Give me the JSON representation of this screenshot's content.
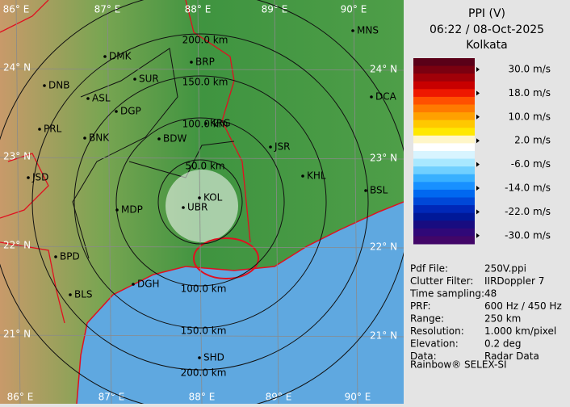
{
  "header": {
    "title": "PPI (V)",
    "time": "06:22 / 08-Oct-2025",
    "site": "Kolkata"
  },
  "legend": {
    "colors": [
      "#5a0018",
      "#7a0010",
      "#a00008",
      "#c80000",
      "#ee1800",
      "#ff5000",
      "#ff7a00",
      "#ffa000",
      "#ffc800",
      "#ffe800",
      "#fff6c8",
      "#ffffff",
      "#d8f4ff",
      "#a8e8ff",
      "#70d0ff",
      "#38b0ff",
      "#1890ff",
      "#0068f0",
      "#0048d8",
      "#0028b8",
      "#001898",
      "#180c80",
      "#300878",
      "#420668"
    ],
    "labels": [
      "30.0 m/s",
      "18.0 m/s",
      "10.0 m/s",
      "2.0 m/s",
      "-6.0 m/s",
      "-14.0 m/s",
      "-22.0 m/s",
      "-30.0 m/s"
    ]
  },
  "info": [
    [
      "Pdf File:",
      "250V.ppi"
    ],
    [
      "Clutter Filter:",
      "IIRDoppler 7"
    ],
    [
      "Time sampling:",
      "48"
    ],
    [
      "PRF:",
      "600 Hz / 450 Hz"
    ],
    [
      "Range:",
      "250 km"
    ],
    [
      "Resolution:",
      "1.000 km/pixel"
    ],
    [
      "Elevation:",
      "0.2 deg"
    ],
    [
      "Data:",
      "Radar Data"
    ]
  ],
  "footer": "Rainbow® SELEX-SI",
  "map": {
    "lon_labels": [
      "86° E",
      "87° E",
      "88° E",
      "89° E",
      "90° E"
    ],
    "lat_labels": [
      "24° N",
      "23° N",
      "22° N",
      "21° N"
    ],
    "ring_labels_top": [
      "50.0 km",
      "100.0 km",
      "150.0 km",
      "200.0 km"
    ],
    "ring_labels_bottom": [
      "100.0 km",
      "150.0 km",
      "200.0 km"
    ],
    "cities": [
      "MNS",
      "DMK",
      "BRP",
      "DNB",
      "SUR",
      "ASL",
      "DGP",
      "DCA",
      "PRL",
      "BNK",
      "BDW",
      "KRG",
      "JSR",
      "KHL",
      "JSD",
      "BSL",
      "MDP",
      "UBR",
      "KOL",
      "BPD",
      "BLS",
      "DGH",
      "SHD"
    ]
  }
}
